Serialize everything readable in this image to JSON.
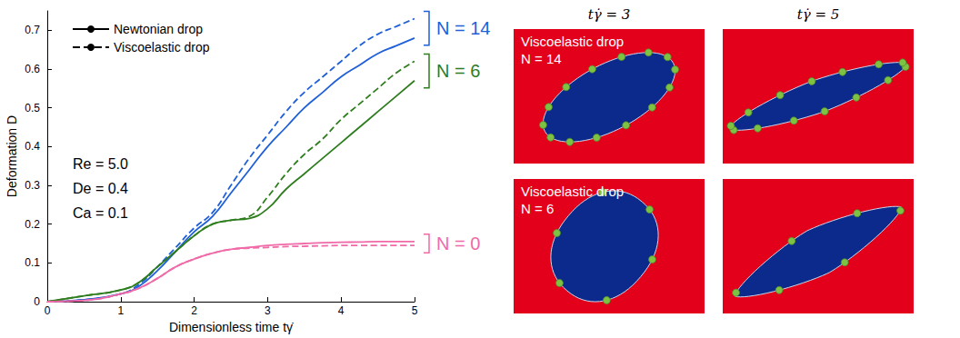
{
  "chart_data": {
    "type": "line",
    "x_label": "Dimensionless time tγ̇",
    "y_label": "Deformation D",
    "xlim": [
      0,
      5
    ],
    "xticks": [
      0,
      1,
      2,
      3,
      4,
      5
    ],
    "ylim": [
      0,
      0.75
    ],
    "yticks": [
      0,
      0.1,
      0.2,
      0.3,
      0.4,
      0.5,
      0.6,
      0.7
    ],
    "x": [
      0,
      0.5,
      1,
      1.25,
      1.5,
      1.75,
      2,
      2.25,
      2.5,
      2.75,
      3,
      3.25,
      3.5,
      3.75,
      4,
      4.25,
      4.5,
      4.75,
      5
    ],
    "legend_entries": [
      {
        "label": "Newtonian drop",
        "line_style": "solid"
      },
      {
        "label": "Viscoelastic drop",
        "line_style": "dashed"
      }
    ],
    "annotations": [
      "Re = 5.0",
      "De = 0.4",
      "Ca = 0.1"
    ],
    "groups": [
      {
        "label": "N = 14",
        "color": "#1f5fd8"
      },
      {
        "label": "N = 6",
        "color": "#2e7d1e"
      },
      {
        "label": "N = 0",
        "color": "#f06aa8"
      }
    ],
    "series": [
      {
        "group": 0,
        "line_style": "solid",
        "values": [
          0,
          0.005,
          0.02,
          0.04,
          0.08,
          0.13,
          0.18,
          0.22,
          0.28,
          0.34,
          0.4,
          0.45,
          0.5,
          0.54,
          0.58,
          0.61,
          0.64,
          0.66,
          0.68
        ]
      },
      {
        "group": 0,
        "line_style": "dashed",
        "values": [
          0,
          0.005,
          0.02,
          0.045,
          0.09,
          0.14,
          0.19,
          0.23,
          0.3,
          0.37,
          0.43,
          0.49,
          0.54,
          0.58,
          0.62,
          0.66,
          0.69,
          0.71,
          0.73
        ]
      },
      {
        "group": 1,
        "line_style": "solid",
        "values": [
          0,
          0.015,
          0.03,
          0.05,
          0.09,
          0.13,
          0.17,
          0.2,
          0.21,
          0.215,
          0.24,
          0.29,
          0.33,
          0.37,
          0.41,
          0.45,
          0.49,
          0.53,
          0.57
        ]
      },
      {
        "group": 1,
        "line_style": "dashed",
        "values": [
          0,
          0.015,
          0.03,
          0.05,
          0.09,
          0.13,
          0.17,
          0.2,
          0.21,
          0.22,
          0.27,
          0.33,
          0.38,
          0.42,
          0.47,
          0.51,
          0.55,
          0.59,
          0.62
        ]
      },
      {
        "group": 2,
        "line_style": "solid",
        "values": [
          0,
          0.003,
          0.02,
          0.035,
          0.06,
          0.09,
          0.11,
          0.125,
          0.135,
          0.14,
          0.145,
          0.148,
          0.15,
          0.152,
          0.153,
          0.154,
          0.155,
          0.155,
          0.155
        ]
      },
      {
        "group": 2,
        "line_style": "dashed",
        "values": [
          0,
          0.003,
          0.02,
          0.035,
          0.06,
          0.09,
          0.11,
          0.125,
          0.135,
          0.138,
          0.14,
          0.142,
          0.143,
          0.144,
          0.145,
          0.145,
          0.145,
          0.145,
          0.145
        ]
      }
    ],
    "panel_columns": [
      "tγ̇ = 3",
      "tγ̇ = 5"
    ],
    "panel_rows": [
      {
        "label": "Viscoelastic drop",
        "n_label": "N = 14"
      },
      {
        "label": "Viscoelastic drop",
        "n_label": "N = 6"
      }
    ]
  }
}
